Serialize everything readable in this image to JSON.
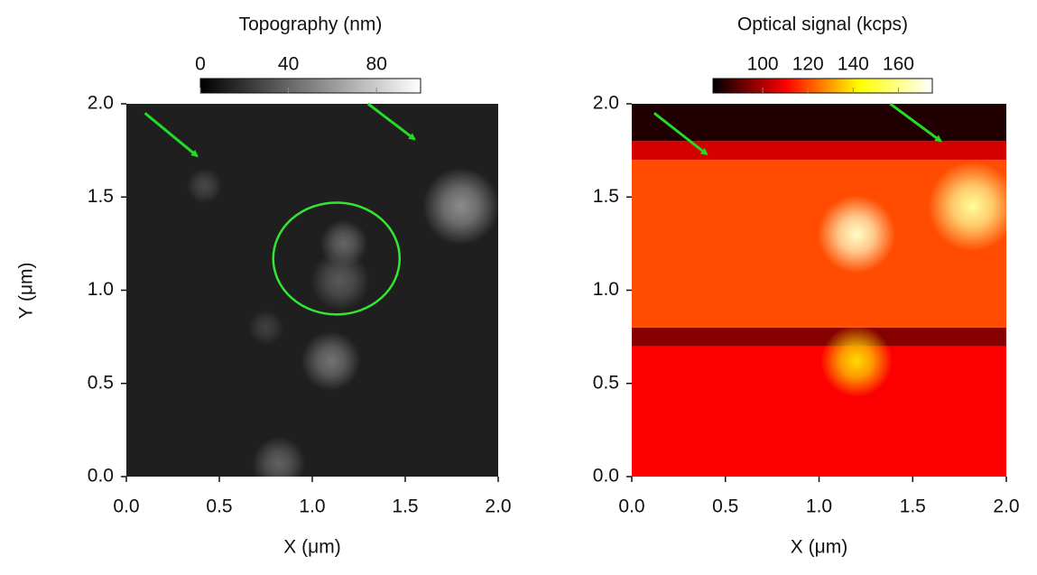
{
  "chart_data": [
    {
      "type": "heatmap",
      "title": "Topography  (nm)",
      "xlabel": "X (μm)",
      "ylabel": "Y (μm)",
      "xlim": [
        0,
        2
      ],
      "ylim": [
        0,
        2
      ],
      "xticks": [
        {
          "value": 0,
          "label": "0.0"
        },
        {
          "value": 0.5,
          "label": "0.5"
        },
        {
          "value": 1,
          "label": "1.0"
        },
        {
          "value": 1.5,
          "label": "1.5"
        },
        {
          "value": 2,
          "label": "2.0"
        }
      ],
      "yticks": [
        {
          "value": 0,
          "label": "0.0"
        },
        {
          "value": 0.5,
          "label": "0.5"
        },
        {
          "value": 1,
          "label": "1.0"
        },
        {
          "value": 1.5,
          "label": "1.5"
        },
        {
          "value": 2,
          "label": "2.0"
        }
      ],
      "clim": [
        0,
        100
      ],
      "cticks": [
        0,
        40,
        80
      ],
      "colors": [
        "#000000",
        "#ffffff"
      ],
      "bands": [
        {
          "y0": 0,
          "y1": 2,
          "value": 12
        }
      ],
      "spots": [
        {
          "x": 1.8,
          "y": 1.45,
          "r": 0.13,
          "value": 55
        },
        {
          "x": 1.17,
          "y": 1.25,
          "r": 0.08,
          "value": 40
        },
        {
          "x": 1.15,
          "y": 1.05,
          "r": 0.1,
          "value": 35
        },
        {
          "x": 1.1,
          "y": 0.62,
          "r": 0.1,
          "value": 45
        },
        {
          "x": 0.82,
          "y": 0.07,
          "r": 0.09,
          "value": 38
        },
        {
          "x": 0.42,
          "y": 1.56,
          "r": 0.06,
          "value": 28
        },
        {
          "x": 0.75,
          "y": 0.8,
          "r": 0.06,
          "value": 25
        }
      ],
      "circle": {
        "x": 1.13,
        "y": 1.17,
        "rx": 0.34,
        "ry": 0.3,
        "color": "#33e633"
      },
      "arrows": [
        {
          "x1": 0.1,
          "y1": 1.95,
          "x2": 0.38,
          "y2": 1.72
        },
        {
          "x1": 1.3,
          "y1": 2.0,
          "x2": 1.55,
          "y2": 1.81
        }
      ],
      "arrow_color": "#22dd22"
    },
    {
      "type": "heatmap",
      "title": "Optical signal  (kcps)",
      "xlabel": "X (μm)",
      "xlim": [
        0,
        2
      ],
      "ylim": [
        0,
        2
      ],
      "xticks": [
        {
          "value": 0,
          "label": "0.0"
        },
        {
          "value": 0.5,
          "label": "0.5"
        },
        {
          "value": 1,
          "label": "1.0"
        },
        {
          "value": 1.5,
          "label": "1.5"
        },
        {
          "value": 2,
          "label": "2.0"
        }
      ],
      "yticks": [
        {
          "value": 0,
          "label": "0.0"
        },
        {
          "value": 0.5,
          "label": "0.5"
        },
        {
          "value": 1,
          "label": "1.0"
        },
        {
          "value": 1.5,
          "label": "1.5"
        },
        {
          "value": 2,
          "label": "2.0"
        }
      ],
      "clim": [
        78,
        175
      ],
      "cticks": [
        100,
        120,
        140,
        160
      ],
      "colors": [
        "#000000",
        "#ff0000",
        "#ffff00",
        "#ffffff"
      ],
      "bands": [
        {
          "y0": 0,
          "y1": 0.7,
          "value": 110
        },
        {
          "y0": 0.7,
          "y1": 0.8,
          "value": 95
        },
        {
          "y0": 0.8,
          "y1": 1.7,
          "value": 120
        },
        {
          "y0": 1.7,
          "y1": 1.8,
          "value": 105
        },
        {
          "y0": 1.8,
          "y1": 2.0,
          "value": 82
        }
      ],
      "spots": [
        {
          "x": 1.2,
          "y": 1.3,
          "r": 0.13,
          "value": 168
        },
        {
          "x": 1.82,
          "y": 1.45,
          "r": 0.15,
          "value": 162
        },
        {
          "x": 1.2,
          "y": 0.62,
          "r": 0.12,
          "value": 138
        }
      ],
      "arrows": [
        {
          "x1": 0.12,
          "y1": 1.95,
          "x2": 0.4,
          "y2": 1.73
        },
        {
          "x1": 1.38,
          "y1": 2.0,
          "x2": 1.65,
          "y2": 1.8
        }
      ],
      "arrow_color": "#22dd22"
    }
  ]
}
